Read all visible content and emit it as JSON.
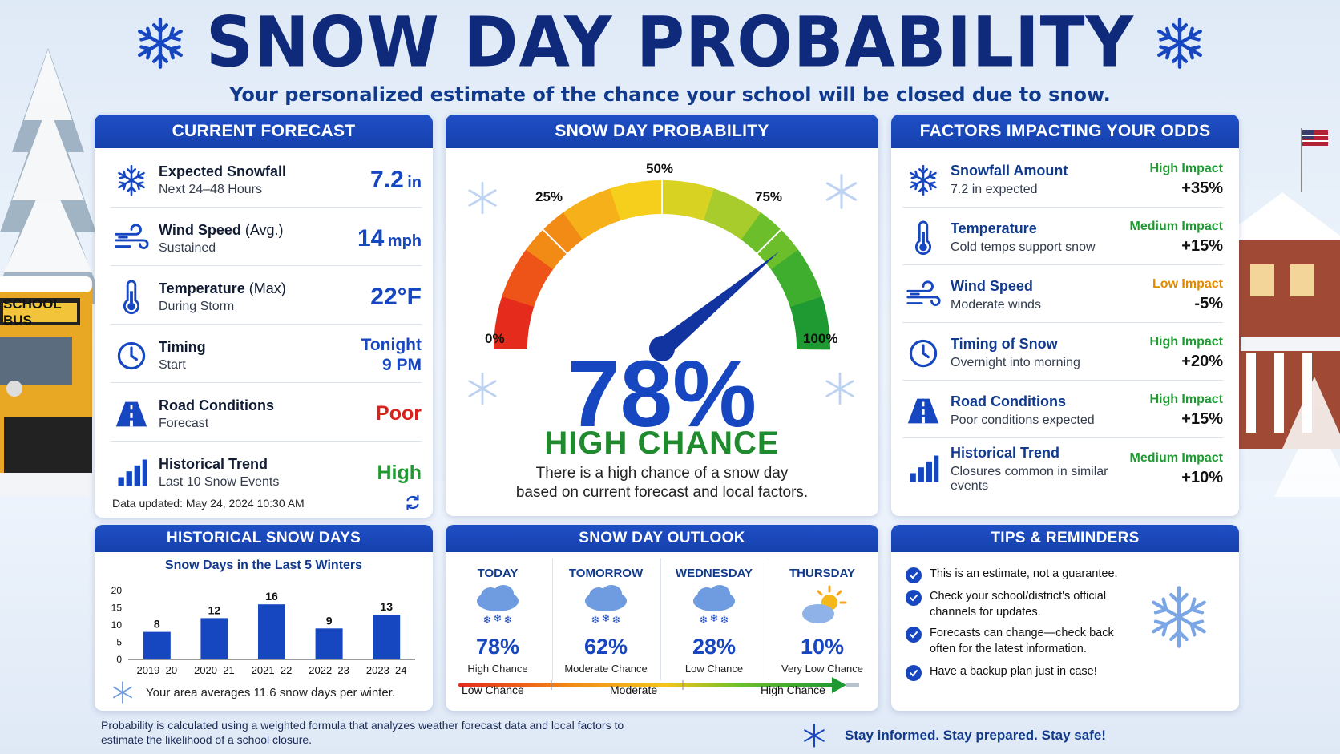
{
  "header": {
    "title": "SNOW DAY PROBABILITY",
    "subtitle": "Your personalized estimate of the chance your school will be closed due to snow."
  },
  "background": {
    "bus_sign": "SCHOOL BUS"
  },
  "forecast": {
    "heading": "CURRENT FORECAST",
    "rows": [
      {
        "icon": "snowflake-icon",
        "label": "Expected Snowfall",
        "label_sub": "",
        "detail": "Next 24–48 Hours",
        "value": "7.2",
        "unit": "in"
      },
      {
        "icon": "wind-icon",
        "label": "Wind Speed",
        "label_sub": "(Avg.)",
        "detail": "Sustained",
        "value": "14",
        "unit": "mph"
      },
      {
        "icon": "thermometer-icon",
        "label": "Temperature",
        "label_sub": "(Max)",
        "detail": "During Storm",
        "value": "22°F",
        "unit": ""
      },
      {
        "icon": "clock-icon",
        "label": "Timing",
        "label_sub": "",
        "detail": "Start",
        "value_line1": "Tonight",
        "value_line2": "9 PM"
      },
      {
        "icon": "road-icon",
        "label": "Road Conditions",
        "label_sub": "",
        "detail": "Forecast",
        "value": "Poor"
      },
      {
        "icon": "bar-chart-icon",
        "label": "Historical Trend",
        "label_sub": "",
        "detail": "Last 10 Snow Events",
        "value": "High"
      }
    ],
    "updated": "Data updated: May 24, 2024 10:30 AM"
  },
  "gauge": {
    "heading": "SNOW DAY PROBABILITY",
    "ticks": [
      "0%",
      "25%",
      "50%",
      "75%",
      "100%"
    ],
    "value": 78,
    "value_label": "78%",
    "chance": "HIGH CHANCE",
    "description_line1": "There is a high chance of a snow day",
    "description_line2": "based on current forecast and local factors."
  },
  "factors": {
    "heading": "FACTORS IMPACTING YOUR ODDS",
    "rows": [
      {
        "icon": "snowflake-icon",
        "label": "Snowfall Amount",
        "detail": "7.2 in expected",
        "impact": "High Impact",
        "impact_color": "#1f9a32",
        "change": "+35%"
      },
      {
        "icon": "thermometer-icon",
        "label": "Temperature",
        "detail": "Cold temps support snow",
        "impact": "Medium Impact",
        "impact_color": "#1f9a32",
        "change": "+15%"
      },
      {
        "icon": "wind-icon",
        "label": "Wind Speed",
        "detail": "Moderate winds",
        "impact": "Low Impact",
        "impact_color": "#e08a00",
        "change": "-5%"
      },
      {
        "icon": "clock-icon",
        "label": "Timing of Snow",
        "detail": "Overnight into morning",
        "impact": "High Impact",
        "impact_color": "#1f9a32",
        "change": "+20%"
      },
      {
        "icon": "road-icon",
        "label": "Road Conditions",
        "detail": "Poor conditions expected",
        "impact": "High Impact",
        "impact_color": "#1f9a32",
        "change": "+15%"
      },
      {
        "icon": "bar-chart-icon",
        "label": "Historical Trend",
        "detail": "Closures common in similar events",
        "impact": "Medium Impact",
        "impact_color": "#1f9a32",
        "change": "+10%"
      }
    ]
  },
  "historical": {
    "heading": "HISTORICAL SNOW DAYS",
    "chart_title": "Snow Days in the Last 5 Winters",
    "footer": "Your area averages 11.6 snow days per winter."
  },
  "chart_data": {
    "type": "bar",
    "title": "Snow Days in the Last 5 Winters",
    "categories": [
      "2019–20",
      "2020–21",
      "2021–22",
      "2022–23",
      "2023–24"
    ],
    "values": [
      8,
      12,
      16,
      9,
      13
    ],
    "ylim": [
      0,
      20
    ],
    "yticks": [
      0,
      5,
      10,
      15,
      20
    ],
    "xlabel": "",
    "ylabel": "",
    "grid": false,
    "bar_color": "#1747c0"
  },
  "outlook": {
    "heading": "SNOW DAY OUTLOOK",
    "days": [
      {
        "day": "TODAY",
        "icon": "snow-cloud-icon",
        "pct": "78%",
        "label": "High Chance"
      },
      {
        "day": "TOMORROW",
        "icon": "snow-cloud-icon",
        "pct": "62%",
        "label": "Moderate Chance"
      },
      {
        "day": "WEDNESDAY",
        "icon": "snow-cloud-icon",
        "pct": "28%",
        "label": "Low Chance"
      },
      {
        "day": "THURSDAY",
        "icon": "partly-sunny-icon",
        "pct": "10%",
        "label": "Very Low Chance"
      }
    ],
    "scale": {
      "low": "Low Chance",
      "mid": "Moderate",
      "high": "High Chance"
    }
  },
  "tips": {
    "heading": "TIPS & REMINDERS",
    "items": [
      "This is an estimate, not a guarantee.",
      "Check your school/district's official channels for updates.",
      "Forecasts can change—check back often for the latest information.",
      "Have a backup plan just in case!"
    ]
  },
  "footer": {
    "note": "Probability is calculated using a weighted formula that analyzes weather forecast data and local factors to estimate the likelihood of a school closure.",
    "slogan": "Stay informed. Stay prepared. Stay safe!"
  },
  "colors": {
    "brand_blue": "#1747c0",
    "header_blue": "#1f4fc6",
    "title_navy": "#0f2a7a",
    "green": "#1f9a32",
    "red": "#d8231a",
    "orange": "#e08a00"
  }
}
